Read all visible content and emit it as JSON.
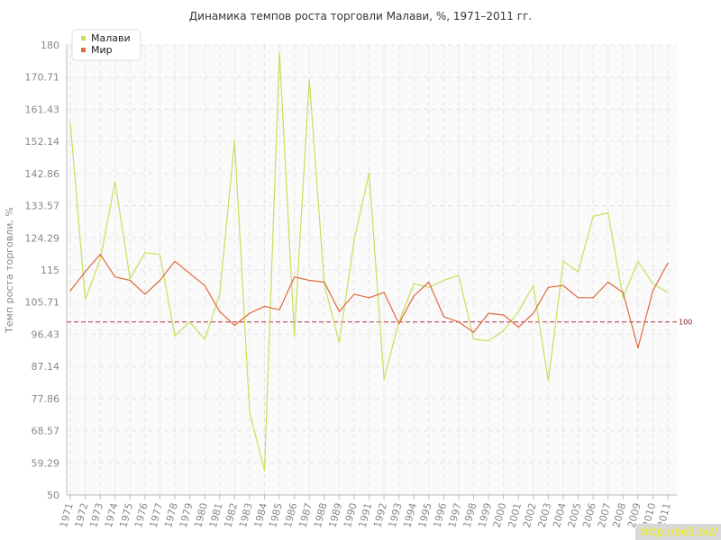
{
  "chart_data": {
    "type": "line",
    "title": "Динамика темпов роста торговли Малави, %, 1971–2011 гг.",
    "xlabel": "",
    "ylabel": "Темп роста торговли, %",
    "ylim": [
      50,
      180
    ],
    "yticks": [
      "50",
      "59.29",
      "68.57",
      "77.86",
      "87.14",
      "96.43",
      "105.71",
      "115",
      "124.29",
      "133.57",
      "142.86",
      "152.14",
      "161.43",
      "170.71",
      "180"
    ],
    "categories": [
      "1971",
      "1972",
      "1973",
      "1974",
      "1975",
      "1976",
      "1977",
      "1978",
      "1979",
      "1980",
      "1981",
      "1982",
      "1983",
      "1984",
      "1985",
      "1986",
      "1987",
      "1988",
      "1989",
      "1990",
      "1991",
      "1992",
      "1993",
      "1994",
      "1995",
      "1996",
      "1997",
      "1998",
      "1999",
      "2000",
      "2001",
      "2002",
      "2003",
      "2004",
      "2005",
      "2006",
      "2007",
      "2008",
      "2009",
      "2010",
      "2011"
    ],
    "series": [
      {
        "name": "Малави",
        "color": "#c6e05a",
        "values": [
          157.5,
          106.5,
          118,
          140.5,
          112.5,
          120,
          119.5,
          96,
          100,
          95,
          108,
          152.5,
          74,
          57,
          178,
          96,
          170,
          111,
          94,
          123.5,
          143,
          83.5,
          100,
          111,
          110,
          112,
          113.5,
          95,
          94.5,
          97.5,
          103,
          110.5,
          83,
          117.5,
          114.5,
          130.5,
          131.5,
          107,
          117.5,
          111,
          108.5
        ]
      },
      {
        "name": "Мир",
        "color": "#e06a3a",
        "values": [
          109,
          114.5,
          119.5,
          113,
          112,
          108,
          112,
          117.5,
          114,
          110.5,
          103,
          99,
          102.5,
          104.5,
          103.5,
          113,
          112,
          111.5,
          103,
          108,
          107,
          108.5,
          99.5,
          107.5,
          111.5,
          101.5,
          100,
          97,
          102.5,
          102,
          98.5,
          102.5,
          110,
          110.5,
          107,
          107,
          111.5,
          108.5,
          92.5,
          109,
          117
        ]
      }
    ],
    "reference_line": {
      "value": 100,
      "label": "100",
      "color": "#b03040"
    },
    "grid": true,
    "legend_position": "top-left"
  },
  "watermark": "http://be5.biz/"
}
